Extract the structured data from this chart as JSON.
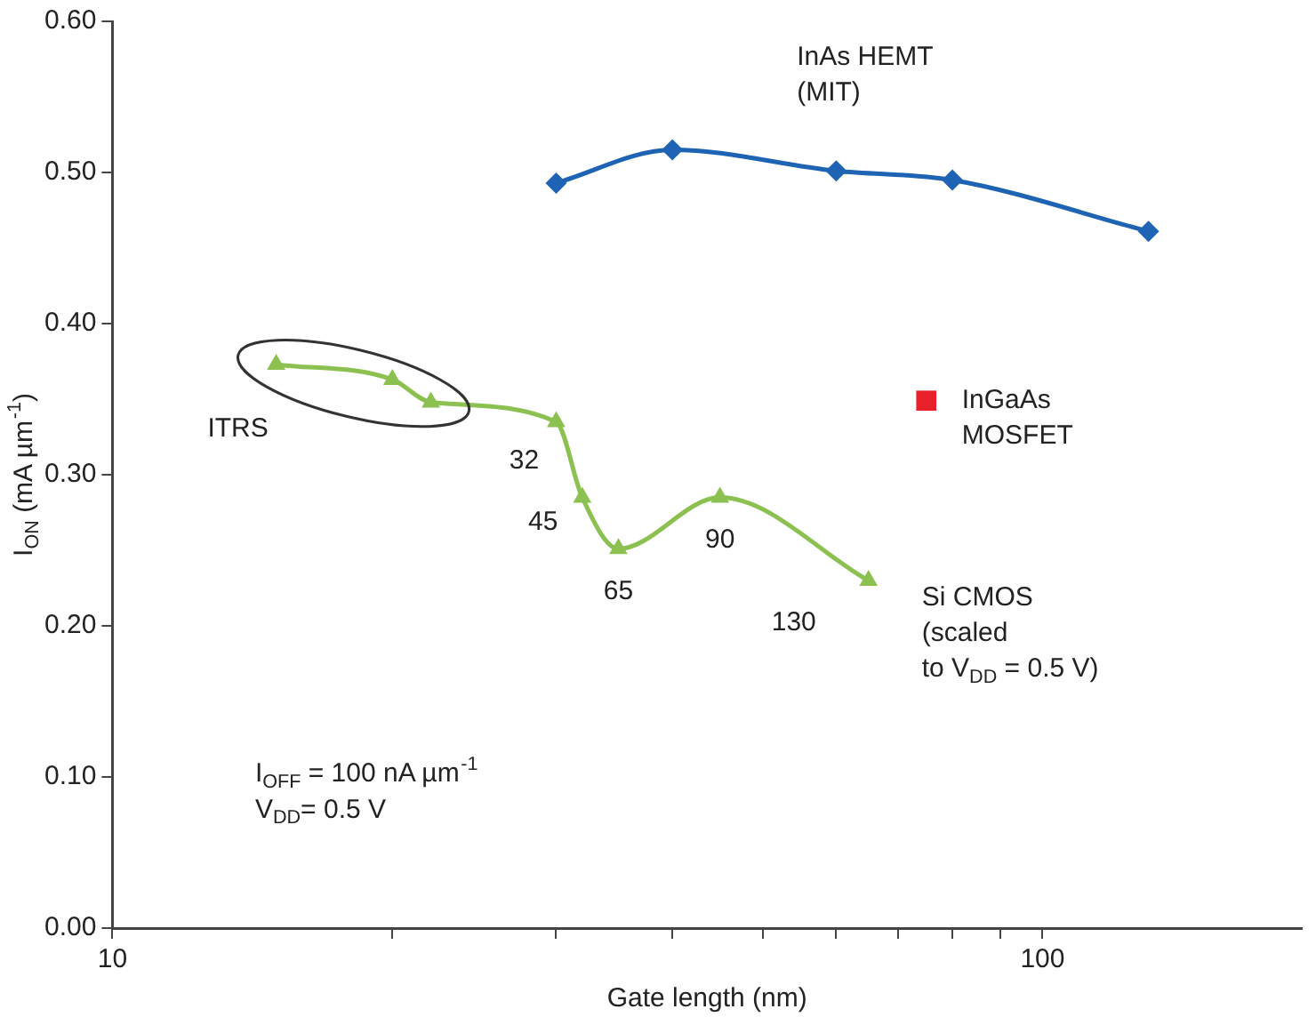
{
  "chart_data": {
    "type": "line",
    "xlabel": "Gate length (nm)",
    "ylabel": "I$_{ON}$ (mA µm$^{-1}$)",
    "log": "x",
    "xlim": [
      10,
      190
    ],
    "xticks": [
      10,
      {
        "value": 20,
        "label": null
      },
      {
        "value": 30,
        "label": null
      },
      {
        "value": 40,
        "label": null
      },
      {
        "value": 50,
        "label": null
      },
      {
        "value": 60,
        "label": null
      },
      {
        "value": 70,
        "label": null
      },
      {
        "value": 80,
        "label": null
      },
      {
        "value": 90,
        "label": null
      },
      100
    ],
    "ylim": [
      0,
      0.6
    ],
    "yticks": [
      {
        "value": 0,
        "label": "0.00"
      },
      {
        "value": 0.1,
        "label": "0.10"
      },
      {
        "value": 0.2,
        "label": "0.20"
      },
      {
        "value": 0.3,
        "label": "0.30"
      },
      {
        "value": 0.4,
        "label": "0.40"
      },
      {
        "value": 0.5,
        "label": "0.50"
      },
      {
        "value": 0.6,
        "label": "0.60"
      }
    ],
    "grid": false,
    "legend": false,
    "series": [
      {
        "name": "InAs HEMT\n(MIT)",
        "color": "#1f64b4",
        "marker": "diamond",
        "x": [
          30,
          40,
          60,
          80,
          130
        ],
        "values": [
          0.493,
          0.515,
          0.501,
          0.495,
          0.461
        ]
      },
      {
        "name": "Si CMOS\n(scaled\nto V$_{DD}$ = 0.5 V)",
        "color": "#8cc152",
        "marker": "triangle",
        "x": [
          15,
          20,
          22,
          30,
          32,
          35,
          45,
          65
        ],
        "values": [
          0.373,
          0.363,
          0.348,
          0.335,
          0.285,
          0.251,
          0.285,
          0.23
        ]
      },
      {
        "name": "InGaAs\nMOSFET",
        "color": "#e8202a",
        "marker": "square",
        "x": [
          75
        ],
        "values": [
          0.349
        ]
      }
    ],
    "annotations": [
      "ITRS",
      {
        "text": "32",
        "x": 30,
        "y": 0.335
      },
      {
        "text": "45",
        "x": 32,
        "y": 0.285
      },
      {
        "text": "65",
        "x": 35,
        "y": 0.251
      },
      {
        "text": "90",
        "x": 45,
        "y": 0.285
      },
      {
        "text": "130",
        "x": 65,
        "y": 0.23
      },
      "I$_{OFF}$ = 100 nA µm$^{-1}$",
      "V$_{DD}$= 0.5 V"
    ]
  }
}
